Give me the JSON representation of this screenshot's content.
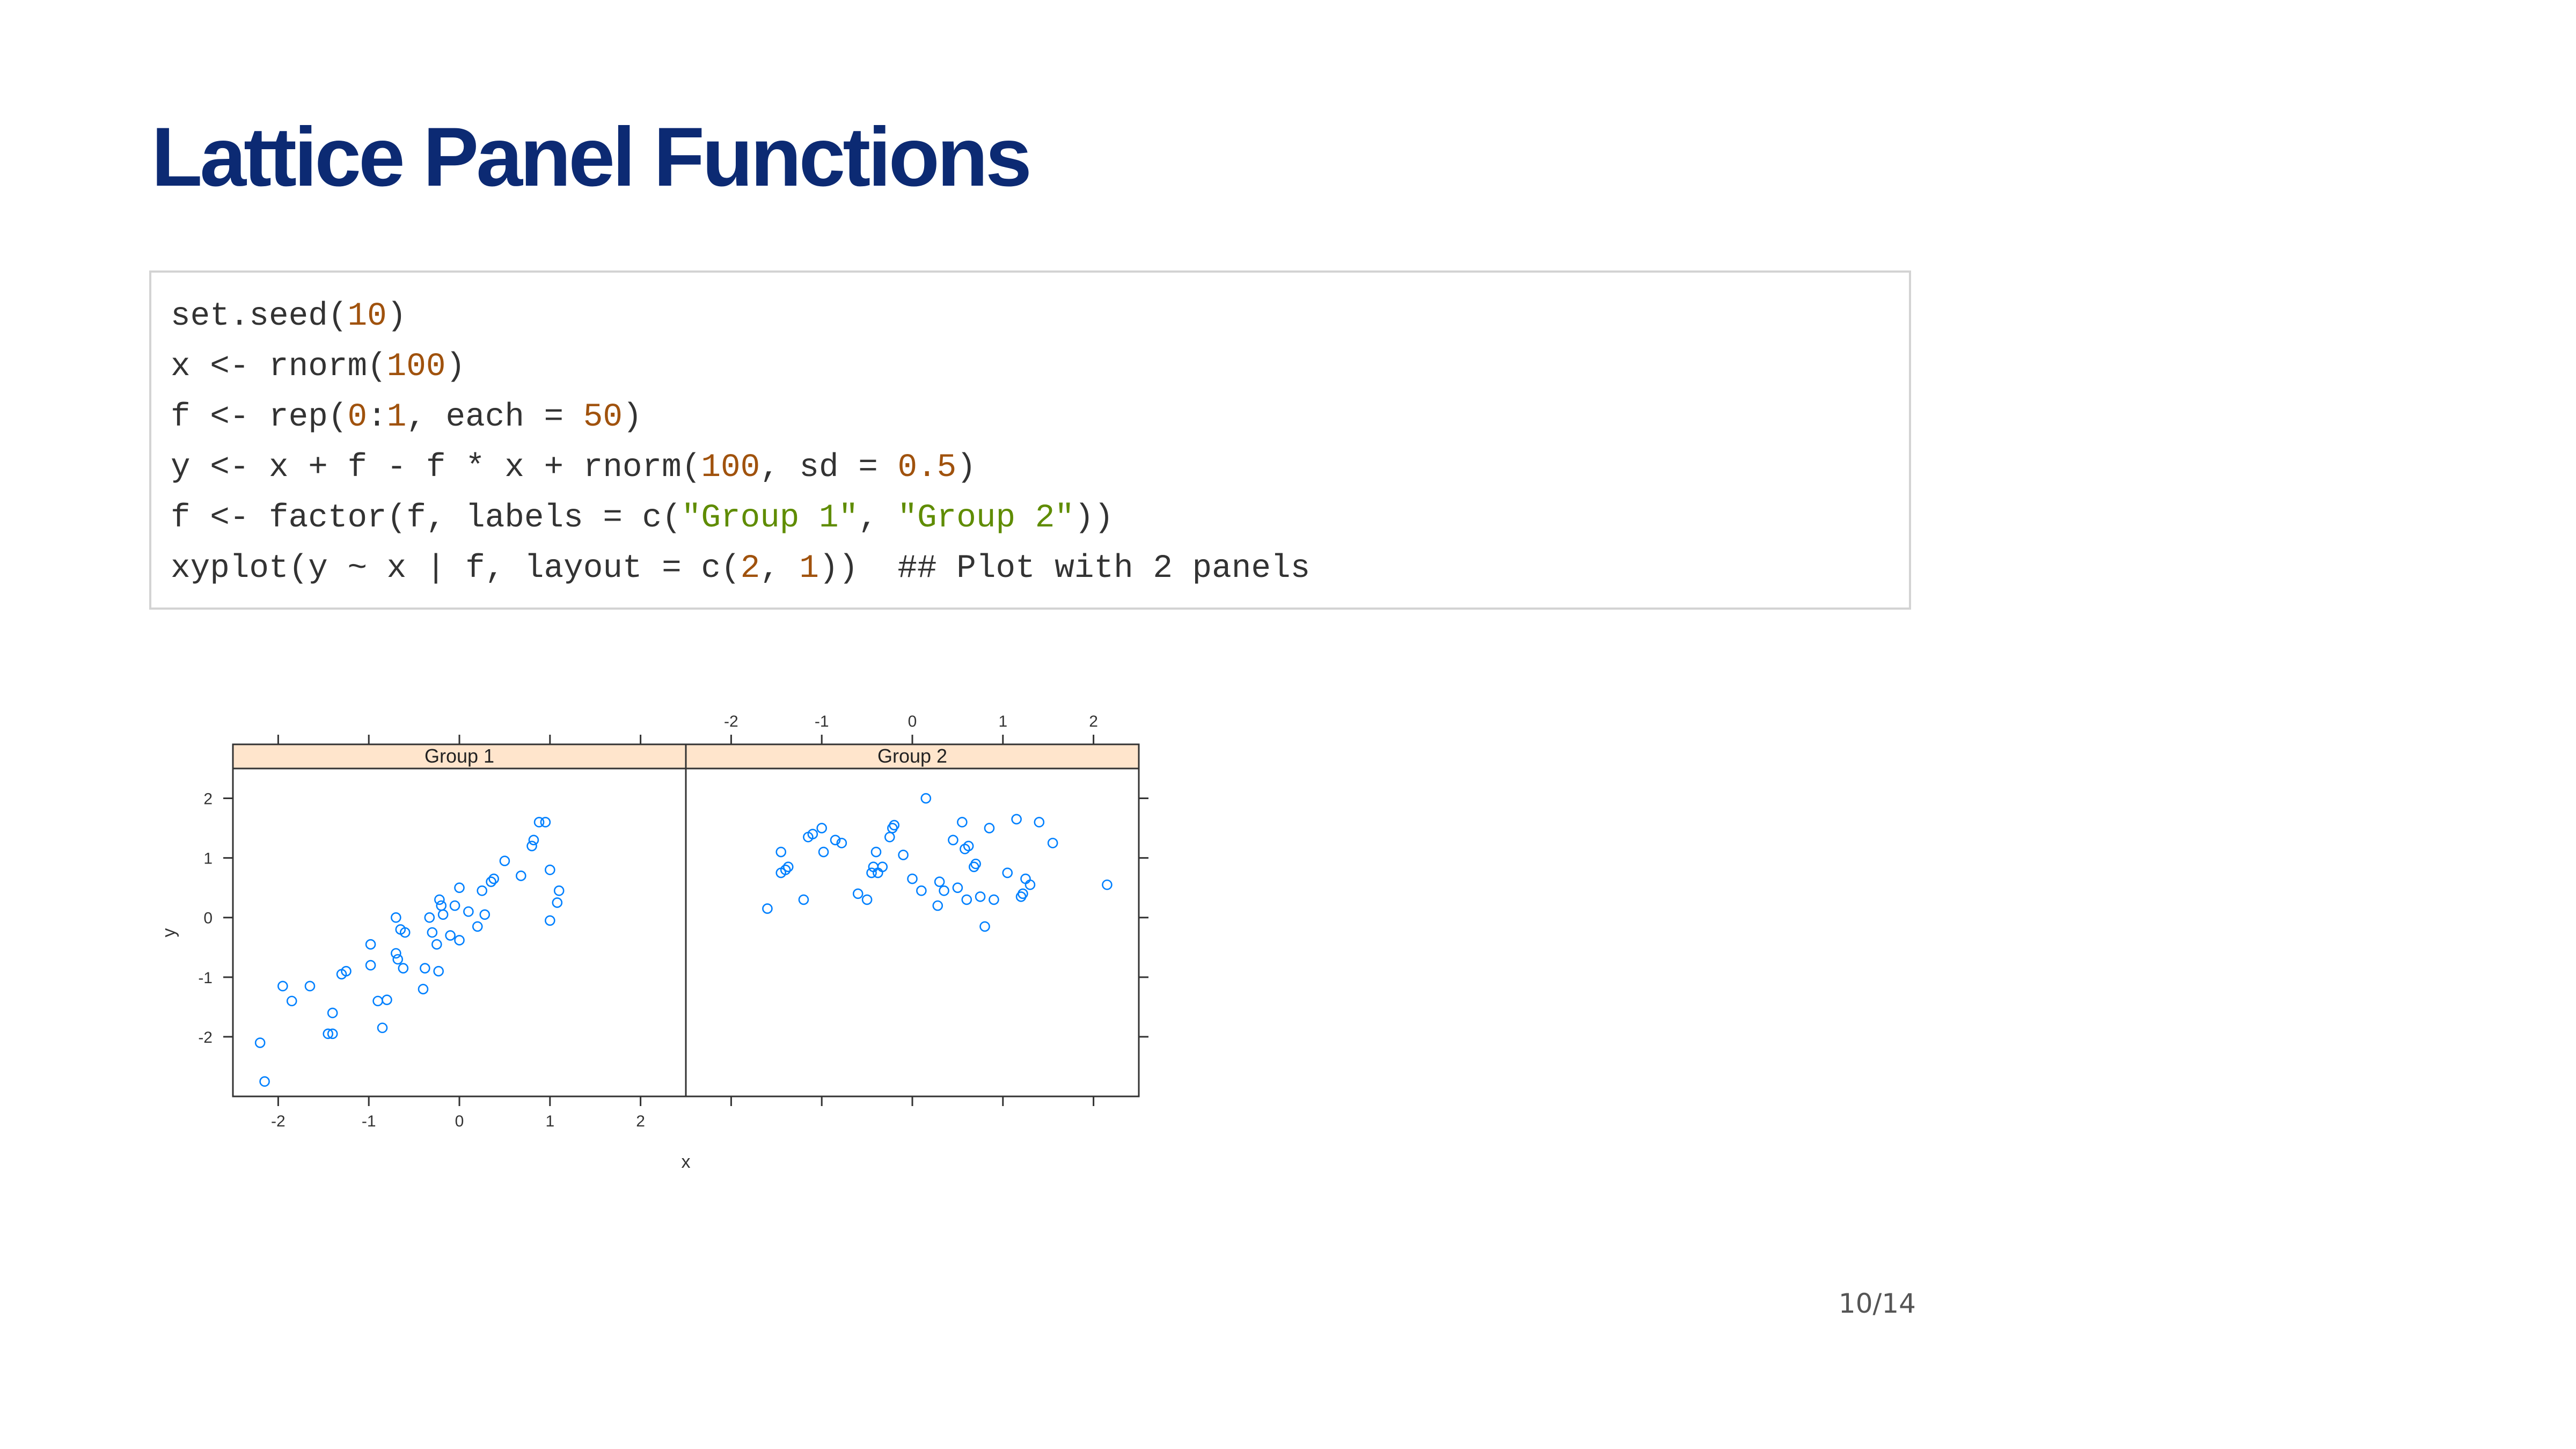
{
  "slide": {
    "title": "Lattice Panel Functions",
    "page_number": "10/14"
  },
  "code": {
    "lines": [
      [
        {
          "t": "set.seed(",
          "c": "plain"
        },
        {
          "t": "10",
          "c": "num"
        },
        {
          "t": ")",
          "c": "plain"
        }
      ],
      [
        {
          "t": "x <- rnorm(",
          "c": "plain"
        },
        {
          "t": "100",
          "c": "num"
        },
        {
          "t": ")",
          "c": "plain"
        }
      ],
      [
        {
          "t": "f <- rep(",
          "c": "plain"
        },
        {
          "t": "0",
          "c": "num"
        },
        {
          "t": ":",
          "c": "plain"
        },
        {
          "t": "1",
          "c": "num"
        },
        {
          "t": ", each = ",
          "c": "plain"
        },
        {
          "t": "50",
          "c": "num"
        },
        {
          "t": ")",
          "c": "plain"
        }
      ],
      [
        {
          "t": "y <- x + f - f * x + rnorm(",
          "c": "plain"
        },
        {
          "t": "100",
          "c": "num"
        },
        {
          "t": ", sd = ",
          "c": "plain"
        },
        {
          "t": "0.5",
          "c": "num"
        },
        {
          "t": ")",
          "c": "plain"
        }
      ],
      [
        {
          "t": "f <- factor(f, labels = c(",
          "c": "plain"
        },
        {
          "t": "\"Group 1\"",
          "c": "str"
        },
        {
          "t": ", ",
          "c": "plain"
        },
        {
          "t": "\"Group 2\"",
          "c": "str"
        },
        {
          "t": "))",
          "c": "plain"
        }
      ],
      [
        {
          "t": "xyplot(y ~ x | f, layout = c(",
          "c": "plain"
        },
        {
          "t": "2",
          "c": "num"
        },
        {
          "t": ", ",
          "c": "plain"
        },
        {
          "t": "1",
          "c": "num"
        },
        {
          "t": "))  ",
          "c": "plain"
        },
        {
          "t": "## Plot with 2 panels",
          "c": "com"
        }
      ]
    ]
  },
  "colors": {
    "title": "#0c2a73",
    "number": "#a0520d",
    "string": "#5f8c00",
    "strip_fill": "#ffe5cc",
    "point": "#0080ff"
  },
  "chart_data": {
    "type": "scatter",
    "xlabel": "x",
    "ylabel": "y",
    "xlim": [
      -2.5,
      2.5
    ],
    "ylim": [
      -3.0,
      2.5
    ],
    "x_ticks": [
      -2,
      -1,
      0,
      1,
      2
    ],
    "y_ticks": [
      -2,
      -1,
      0,
      1,
      2
    ],
    "panels": [
      {
        "strip": "Group 1",
        "points": [
          [
            -2.2,
            -2.1
          ],
          [
            -2.15,
            -2.75
          ],
          [
            -1.95,
            -1.15
          ],
          [
            -1.85,
            -1.4
          ],
          [
            -1.65,
            -1.15
          ],
          [
            -1.45,
            -1.95
          ],
          [
            -1.4,
            -1.95
          ],
          [
            -1.4,
            -1.6
          ],
          [
            -1.3,
            -0.95
          ],
          [
            -1.25,
            -0.9
          ],
          [
            -0.98,
            -0.8
          ],
          [
            -0.98,
            -0.45
          ],
          [
            -0.9,
            -1.4
          ],
          [
            -0.85,
            -1.85
          ],
          [
            -0.8,
            -1.38
          ],
          [
            -0.7,
            -0.6
          ],
          [
            -0.7,
            0.0
          ],
          [
            -0.68,
            -0.7
          ],
          [
            -0.65,
            -0.2
          ],
          [
            -0.62,
            -0.85
          ],
          [
            -0.6,
            -0.25
          ],
          [
            -0.4,
            -1.2
          ],
          [
            -0.38,
            -0.85
          ],
          [
            -0.33,
            0.0
          ],
          [
            -0.3,
            -0.25
          ],
          [
            -0.25,
            -0.45
          ],
          [
            -0.23,
            -0.9
          ],
          [
            -0.22,
            0.3
          ],
          [
            -0.2,
            0.2
          ],
          [
            -0.18,
            0.05
          ],
          [
            -0.1,
            -0.3
          ],
          [
            -0.05,
            0.2
          ],
          [
            0.0,
            0.5
          ],
          [
            0.0,
            -0.38
          ],
          [
            0.1,
            0.1
          ],
          [
            0.2,
            -0.15
          ],
          [
            0.25,
            0.45
          ],
          [
            0.28,
            0.05
          ],
          [
            0.35,
            0.6
          ],
          [
            0.38,
            0.65
          ],
          [
            0.5,
            0.95
          ],
          [
            0.68,
            0.7
          ],
          [
            0.8,
            1.2
          ],
          [
            0.82,
            1.3
          ],
          [
            0.88,
            1.6
          ],
          [
            0.95,
            1.6
          ],
          [
            1.0,
            -0.05
          ],
          [
            1.0,
            0.8
          ],
          [
            1.08,
            0.25
          ],
          [
            1.1,
            0.45
          ]
        ]
      },
      {
        "strip": "Group 2",
        "points": [
          [
            -1.6,
            0.15
          ],
          [
            -1.45,
            0.75
          ],
          [
            -1.45,
            1.1
          ],
          [
            -1.4,
            0.8
          ],
          [
            -1.37,
            0.85
          ],
          [
            -1.2,
            0.3
          ],
          [
            -1.15,
            1.35
          ],
          [
            -1.1,
            1.4
          ],
          [
            -1.0,
            1.5
          ],
          [
            -0.98,
            1.1
          ],
          [
            -0.85,
            1.3
          ],
          [
            -0.78,
            1.25
          ],
          [
            -0.6,
            0.4
          ],
          [
            -0.5,
            0.3
          ],
          [
            -0.45,
            0.75
          ],
          [
            -0.43,
            0.85
          ],
          [
            -0.4,
            1.1
          ],
          [
            -0.38,
            0.75
          ],
          [
            -0.33,
            0.85
          ],
          [
            -0.25,
            1.35
          ],
          [
            -0.22,
            1.5
          ],
          [
            -0.2,
            1.55
          ],
          [
            -0.1,
            1.05
          ],
          [
            0.0,
            0.65
          ],
          [
            0.1,
            0.45
          ],
          [
            0.15,
            2.0
          ],
          [
            0.28,
            0.2
          ],
          [
            0.3,
            0.6
          ],
          [
            0.35,
            0.45
          ],
          [
            0.45,
            1.3
          ],
          [
            0.5,
            0.5
          ],
          [
            0.55,
            1.6
          ],
          [
            0.58,
            1.15
          ],
          [
            0.6,
            0.3
          ],
          [
            0.62,
            1.2
          ],
          [
            0.68,
            0.85
          ],
          [
            0.7,
            0.9
          ],
          [
            0.75,
            0.35
          ],
          [
            0.8,
            -0.15
          ],
          [
            0.85,
            1.5
          ],
          [
            0.9,
            0.3
          ],
          [
            1.05,
            0.75
          ],
          [
            1.15,
            1.65
          ],
          [
            1.2,
            0.35
          ],
          [
            1.22,
            0.4
          ],
          [
            1.25,
            0.65
          ],
          [
            1.3,
            0.55
          ],
          [
            1.4,
            1.6
          ],
          [
            1.55,
            1.25
          ],
          [
            2.15,
            0.55
          ]
        ]
      }
    ]
  }
}
